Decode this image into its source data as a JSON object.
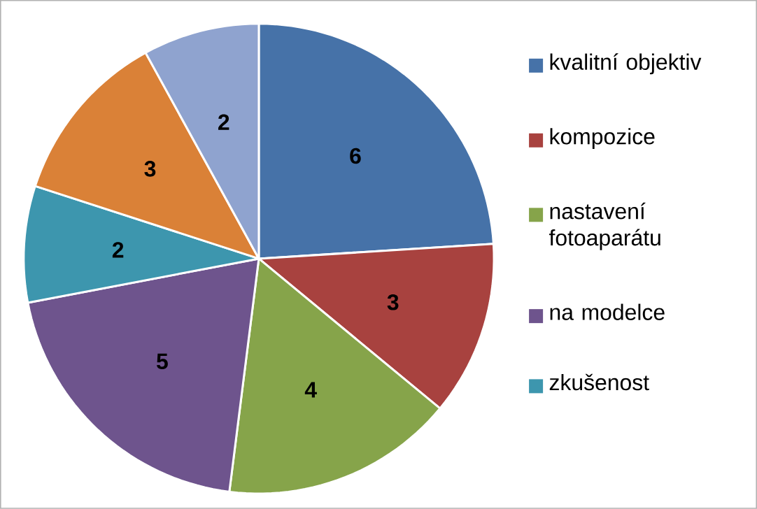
{
  "chart_data": {
    "type": "pie",
    "categories": [
      "kvalitní objektiv",
      "kompozice",
      "nastavení fotoaparátu",
      "na modelce",
      "zkušenost",
      null,
      null
    ],
    "values": [
      6,
      3,
      4,
      5,
      2,
      3,
      2
    ],
    "colors": [
      "#4672a8",
      "#a8423f",
      "#86a44a",
      "#6e548d",
      "#3d96ae",
      "#da8137",
      "#8fa3cf"
    ],
    "data_labels": true,
    "legend": "right"
  }
}
